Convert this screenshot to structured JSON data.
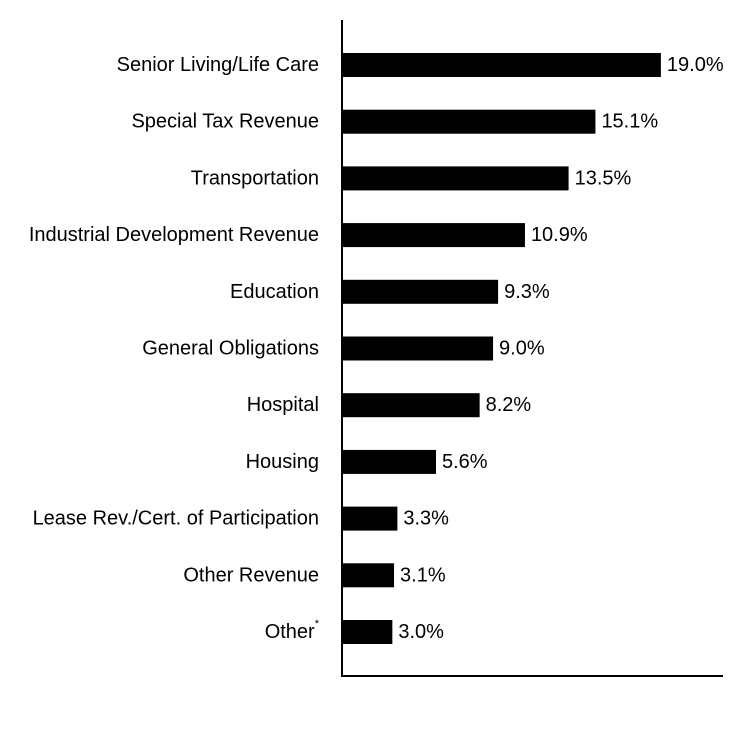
{
  "chart_data": {
    "type": "bar",
    "orientation": "horizontal",
    "categories": [
      "Senior Living/Life Care",
      "Special Tax Revenue",
      "Transportation",
      "Industrial Development Revenue",
      "Education",
      "General Obligations",
      "Hospital",
      "Housing",
      "Lease Rev./Cert. of Participation",
      "Other Revenue",
      "Other"
    ],
    "category_superscripts": [
      "",
      "",
      "",
      "",
      "",
      "",
      "",
      "",
      "",
      "",
      "*"
    ],
    "values": [
      19.0,
      15.1,
      13.5,
      10.9,
      9.3,
      9.0,
      8.2,
      5.6,
      3.3,
      3.1,
      3.0
    ],
    "value_labels": [
      "19.0%",
      "15.1%",
      "13.5%",
      "10.9%",
      "9.3%",
      "9.0%",
      "8.2%",
      "5.6%",
      "3.3%",
      "3.1%",
      "3.0%"
    ],
    "title": "",
    "xlabel": "",
    "ylabel": "",
    "xlim": [
      0,
      22.7
    ],
    "grid": false,
    "legend": "none",
    "bar_color": "#000000",
    "axis_color": "#000000"
  }
}
